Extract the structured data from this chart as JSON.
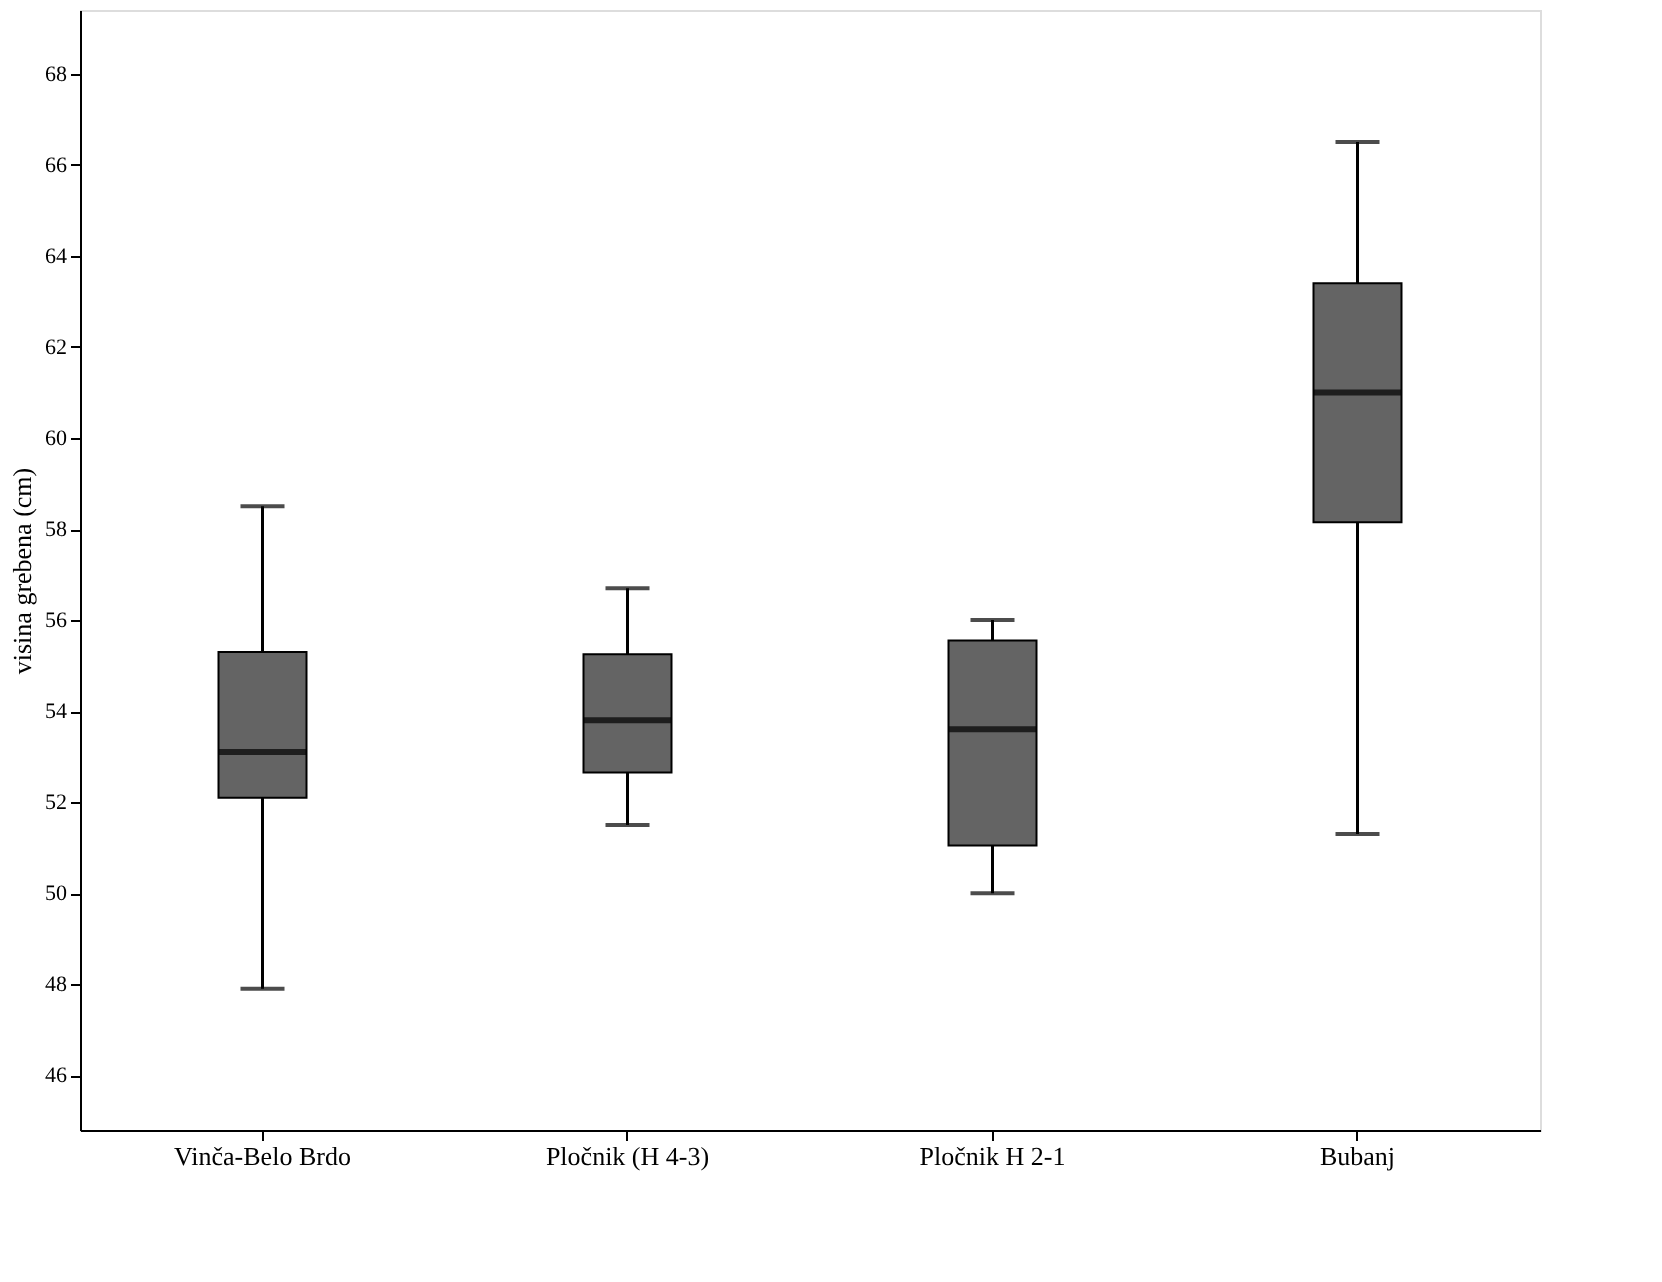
{
  "chart_data": {
    "type": "box",
    "ylabel": "visina grebena (cm)",
    "categories": [
      "Vinča-Belo Brdo",
      "Pločnik (H 4-3)",
      "Pločnik H 2-1",
      "Bubanj"
    ],
    "boxes": [
      {
        "low": 47.9,
        "q1": 52.1,
        "median": 53.1,
        "q3": 55.3,
        "high": 58.5
      },
      {
        "low": 51.5,
        "q1": 52.65,
        "median": 53.8,
        "q3": 55.25,
        "high": 56.7
      },
      {
        "low": 50.0,
        "q1": 51.05,
        "median": 53.6,
        "q3": 55.55,
        "high": 56.0
      },
      {
        "low": 51.3,
        "q1": 58.15,
        "median": 61.0,
        "q3": 63.4,
        "high": 66.5
      }
    ],
    "color": "#646464",
    "ylim": [
      44.8,
      69.4
    ],
    "yticks": [
      46,
      48,
      50,
      52,
      54,
      56,
      58,
      60,
      62,
      64,
      66,
      68
    ],
    "grid": false
  }
}
